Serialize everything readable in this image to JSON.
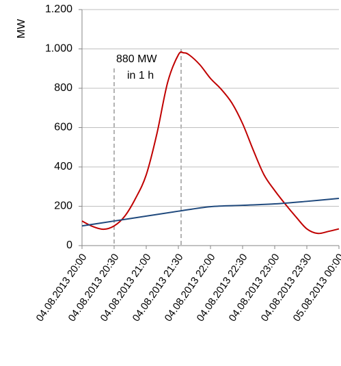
{
  "chart_data": {
    "type": "line",
    "y_label": "MW",
    "annotation": [
      "880 MW",
      "in 1 h"
    ],
    "xlim": [
      "2013-08-04T20:00",
      "2013-08-05T00:00"
    ],
    "xticks": [
      {
        "value": "2013-08-04T20:00",
        "label": "04.08.2013 20:00"
      },
      {
        "value": "2013-08-04T20:30",
        "label": "04.08.2013 20:30"
      },
      {
        "value": "2013-08-04T21:00",
        "label": "04.08.2013 21:00"
      },
      {
        "value": "2013-08-04T21:30",
        "label": "04.08.2013 21:30"
      },
      {
        "value": "2013-08-04T22:00",
        "label": "04.08.2013 22:00"
      },
      {
        "value": "2013-08-04T22:30",
        "label": "04.08.2013 22:30"
      },
      {
        "value": "2013-08-04T23:00",
        "label": "04.08.2013 23:00"
      },
      {
        "value": "2013-08-04T23:30",
        "label": "04.08.2013 23:30"
      },
      {
        "value": "2013-08-05T00:00",
        "label": "05.08.2013 00:00"
      }
    ],
    "ylim": [
      0,
      1200
    ],
    "yticks": [
      0,
      200,
      400,
      600,
      800,
      {
        "value": 1000,
        "label": "1.000"
      },
      {
        "value": 1200,
        "label": "1.200"
      }
    ],
    "grid": true,
    "series": [
      {
        "color": "#c00000",
        "x": [
          "2013-08-04T20:00",
          "2013-08-04T20:10",
          "2013-08-04T20:20",
          "2013-08-04T20:30",
          "2013-08-04T20:40",
          "2013-08-04T20:50",
          "2013-08-04T21:00",
          "2013-08-04T21:10",
          "2013-08-04T21:20",
          "2013-08-04T21:30",
          "2013-08-04T21:35",
          "2013-08-04T21:40",
          "2013-08-04T21:50",
          "2013-08-04T22:00",
          "2013-08-04T22:10",
          "2013-08-04T22:20",
          "2013-08-04T22:30",
          "2013-08-04T22:40",
          "2013-08-04T22:50",
          "2013-08-04T23:00",
          "2013-08-04T23:10",
          "2013-08-04T23:20",
          "2013-08-04T23:30",
          "2013-08-04T23:40",
          "2013-08-04T23:50",
          "2013-08-05T00:00"
        ],
        "values": [
          125,
          97,
          83,
          100,
          150,
          240,
          360,
          570,
          830,
          970,
          980,
          970,
          920,
          850,
          795,
          725,
          620,
          485,
          360,
          280,
          210,
          145,
          85,
          62,
          72,
          85
        ]
      },
      {
        "color": "#1f497d",
        "x": [
          "2013-08-04T20:00",
          "2013-08-04T20:30",
          "2013-08-04T21:00",
          "2013-08-04T21:30",
          "2013-08-04T22:00",
          "2013-08-04T22:30",
          "2013-08-04T23:00",
          "2013-08-04T23:30",
          "2013-08-05T00:00"
        ],
        "values": [
          100,
          125,
          150,
          175,
          198,
          205,
          212,
          225,
          240
        ]
      }
    ]
  }
}
